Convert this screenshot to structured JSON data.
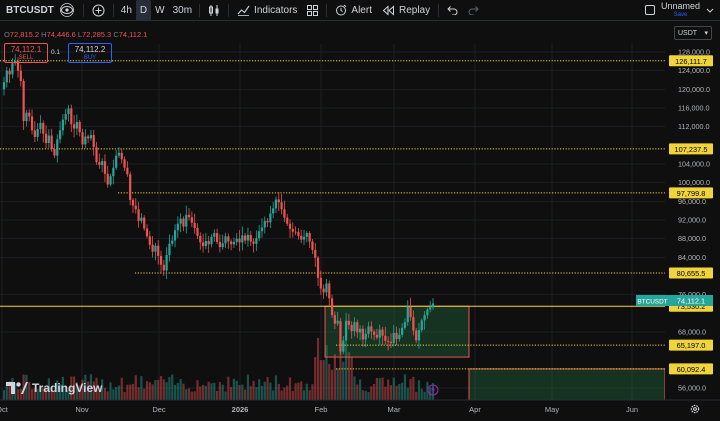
{
  "toolbar": {
    "symbol": "BTCUSDT",
    "intervals": [
      {
        "label": "4h",
        "active": false
      },
      {
        "label": "D",
        "active": true
      },
      {
        "label": "W",
        "active": false
      },
      {
        "label": "30m",
        "active": false
      }
    ],
    "indicators_label": "Indicators",
    "alert_label": "Alert",
    "replay_label": "Replay",
    "layout_name": "Unnamed",
    "save_label": "Save"
  },
  "legend": {
    "o_label": "O",
    "o_value": "72,815.2",
    "h_label": "H",
    "h_value": "74,446.6",
    "l_label": "L",
    "l_value": "72,285.3",
    "c_label": "C",
    "c_value": "74,112.1"
  },
  "trade": {
    "sell_price": "74,112.1",
    "sell_label": "SELL",
    "spread": "0.1",
    "buy_price": "74,112.2",
    "buy_label": "BUY"
  },
  "currency": "USDT",
  "brand": "TradingView",
  "chart_data": {
    "type": "candlestick",
    "symbol": "BTCUSDT",
    "interval": "D",
    "price_axis": {
      "min": 54000,
      "max": 129000,
      "ticks": [
        "128,000.0",
        "124,000.0",
        "120,000.0",
        "116,000.0",
        "112,000.0",
        "104,000.0",
        "100,000.0",
        "96,000.0",
        "92,000.0",
        "88,000.0",
        "84,000.0",
        "76,000.0",
        "68,000.0",
        "56,000.0"
      ]
    },
    "time_axis": {
      "labels": [
        {
          "label": "Oct",
          "bold": false
        },
        {
          "label": "Nov",
          "bold": false
        },
        {
          "label": "Dec",
          "bold": false
        },
        {
          "label": "2026",
          "bold": true
        },
        {
          "label": "Feb",
          "bold": false
        },
        {
          "label": "Mar",
          "bold": false
        },
        {
          "label": "Apr",
          "bold": false
        },
        {
          "label": "May",
          "bold": false
        },
        {
          "label": "Jun",
          "bold": false
        }
      ]
    },
    "levels": [
      {
        "price": 126111.7,
        "label": "126,111.7",
        "style": "dotted"
      },
      {
        "price": 107237.5,
        "label": "107,237.5",
        "style": "dotted"
      },
      {
        "price": 97799.8,
        "label": "97,799.8",
        "style": "dotted"
      },
      {
        "price": 80655.5,
        "label": "80,655.5",
        "style": "dotted"
      },
      {
        "price": 73530.2,
        "label": "73,530.2",
        "style": "solid"
      },
      {
        "price": 65197.0,
        "label": "65,197.0",
        "style": "dotted"
      },
      {
        "price": 60092.4,
        "label": "60,092.4",
        "style": "dotted"
      }
    ],
    "current_price": {
      "symbol": "BTCUSDT",
      "price": 74112.1,
      "label": "74,112.1"
    },
    "colors": {
      "up": "#26a69a",
      "down": "#ef5350",
      "level": "#f0d43a",
      "bg": "#0f0f0f"
    },
    "closes": [
      121500,
      124000,
      123200,
      125600,
      126100,
      124000,
      121800,
      113200,
      115000,
      114200,
      111200,
      109800,
      111500,
      112800,
      110500,
      108500,
      110100,
      107200,
      105800,
      109300,
      111200,
      113500,
      114700,
      115900,
      112500,
      111600,
      113000,
      110800,
      108200,
      109900,
      109500,
      110200,
      107600,
      104400,
      103800,
      104600,
      101900,
      99600,
      101400,
      103200,
      105800,
      106400,
      105000,
      103200,
      101800,
      96300,
      95100,
      94300,
      91800,
      92500,
      90200,
      88500,
      86700,
      85200,
      86500,
      84300,
      82400,
      81200,
      84500,
      86900,
      87600,
      89800,
      91200,
      92300,
      90600,
      93100,
      92600,
      91400,
      90300,
      88600,
      87200,
      86400,
      87500,
      86800,
      88400,
      89200,
      87300,
      86200,
      87000,
      88500,
      87400,
      86800,
      87300,
      88000,
      87200,
      88700,
      87600,
      88800,
      87400,
      86900,
      88100,
      89600,
      90400,
      91800,
      91500,
      93400,
      94500,
      96400,
      95800,
      94300,
      92500,
      91200,
      90100,
      89500,
      89400,
      88600,
      87800,
      88400,
      89200,
      87400,
      85600,
      83900,
      79600,
      77300,
      76500,
      78400,
      75200,
      71600,
      69800,
      70400,
      63800,
      66200,
      70400,
      69500,
      68200,
      70100,
      67900,
      68700,
      66400,
      67600,
      69200,
      68100,
      67400,
      66800,
      68500,
      67200,
      66100,
      65900,
      65600,
      67800,
      66500,
      67400,
      68900,
      70100,
      73400,
      71200,
      68300,
      66200,
      68400,
      70500,
      71600,
      72800,
      73300,
      74112
    ],
    "rectangles": [
      {
        "from_price": 65197.0,
        "to_price": 73530.2,
        "fill": "green"
      },
      {
        "from_price": 54000,
        "to_price": 60092.4,
        "fill": "green"
      }
    ]
  }
}
